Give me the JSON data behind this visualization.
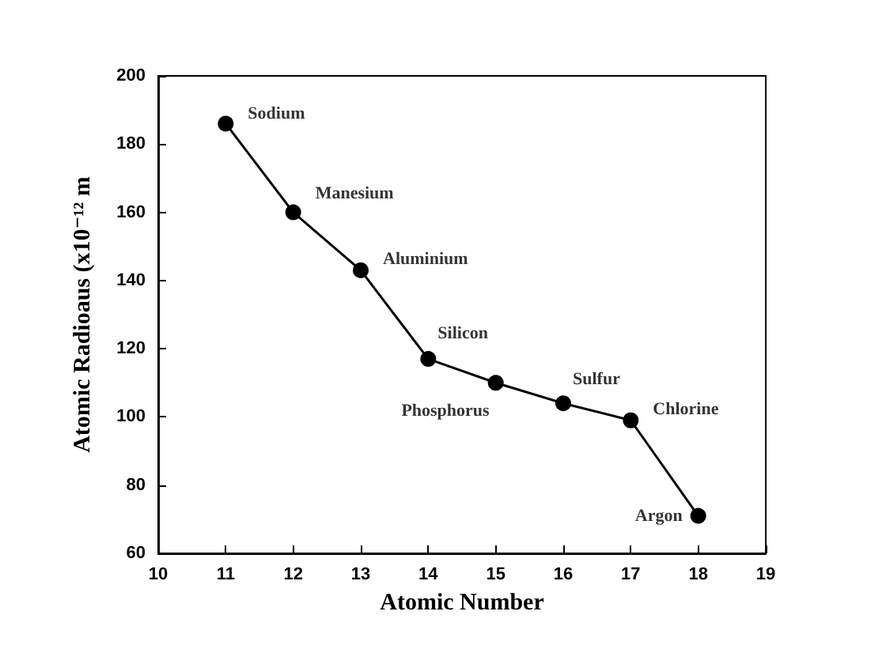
{
  "chart_data": {
    "type": "line",
    "xlabel": "Atomic Number",
    "ylabel": "Atomic Radioaus (x10⁻¹² m",
    "x": [
      11,
      12,
      13,
      14,
      15,
      16,
      17,
      18
    ],
    "series": [
      {
        "color": "#000000",
        "values": [
          186,
          160,
          143,
          117,
          110,
          104,
          99,
          71
        ]
      }
    ],
    "xlim": [
      10,
      19
    ],
    "xticks": [
      10,
      11,
      12,
      13,
      14,
      15,
      16,
      17,
      18,
      19
    ],
    "ylim": [
      60,
      200
    ],
    "yticks": [
      60,
      80,
      100,
      120,
      140,
      160,
      180,
      200
    ],
    "marker": "circle",
    "line_style": "solid",
    "annotations": [
      {
        "text": "Sodium",
        "x": 11,
        "y": 186
      },
      {
        "text": "Manesium",
        "x": 12,
        "y": 160
      },
      {
        "text": "Aluminium",
        "x": 13,
        "y": 143
      },
      {
        "text": "Silicon",
        "x": 14,
        "y": 117
      },
      {
        "text": "Phosphorus",
        "x": 15,
        "y": 110
      },
      {
        "text": "Sulfur",
        "x": 16,
        "y": 104
      },
      {
        "text": "Chlorine",
        "x": 17,
        "y": 99
      },
      {
        "text": "Argon",
        "x": 18,
        "y": 71
      }
    ]
  }
}
